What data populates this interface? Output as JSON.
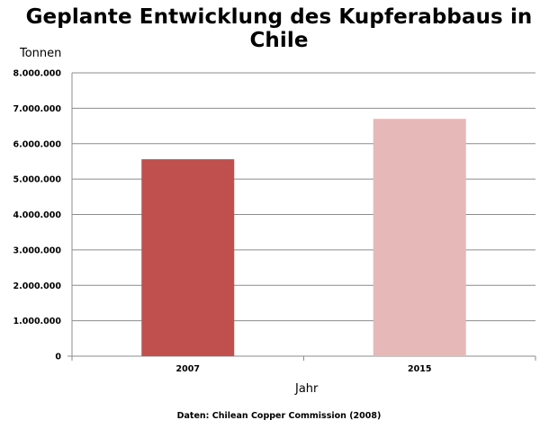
{
  "chart_data": {
    "type": "bar",
    "title": "Geplante Entwicklung des Kupferabbaus in Chile",
    "ylabel": "Tonnen",
    "xlabel": "Jahr",
    "source": "Daten: Chilean Copper Commission (2008)",
    "categories": [
      "2007",
      "2015"
    ],
    "values": [
      5560000,
      6700000
    ],
    "colors": [
      "#c0504d",
      "#e6b8b7"
    ],
    "ylim": [
      0,
      8000000
    ],
    "yticks": [
      0,
      1000000,
      2000000,
      3000000,
      4000000,
      5000000,
      6000000,
      7000000,
      8000000
    ],
    "ytick_labels": [
      "0",
      "1.000.000",
      "2.000.000",
      "3.000.000",
      "4.000.000",
      "5.000.000",
      "6.000.000",
      "7.000.000",
      "8.000.000"
    ],
    "grid": true,
    "legend": "none"
  }
}
